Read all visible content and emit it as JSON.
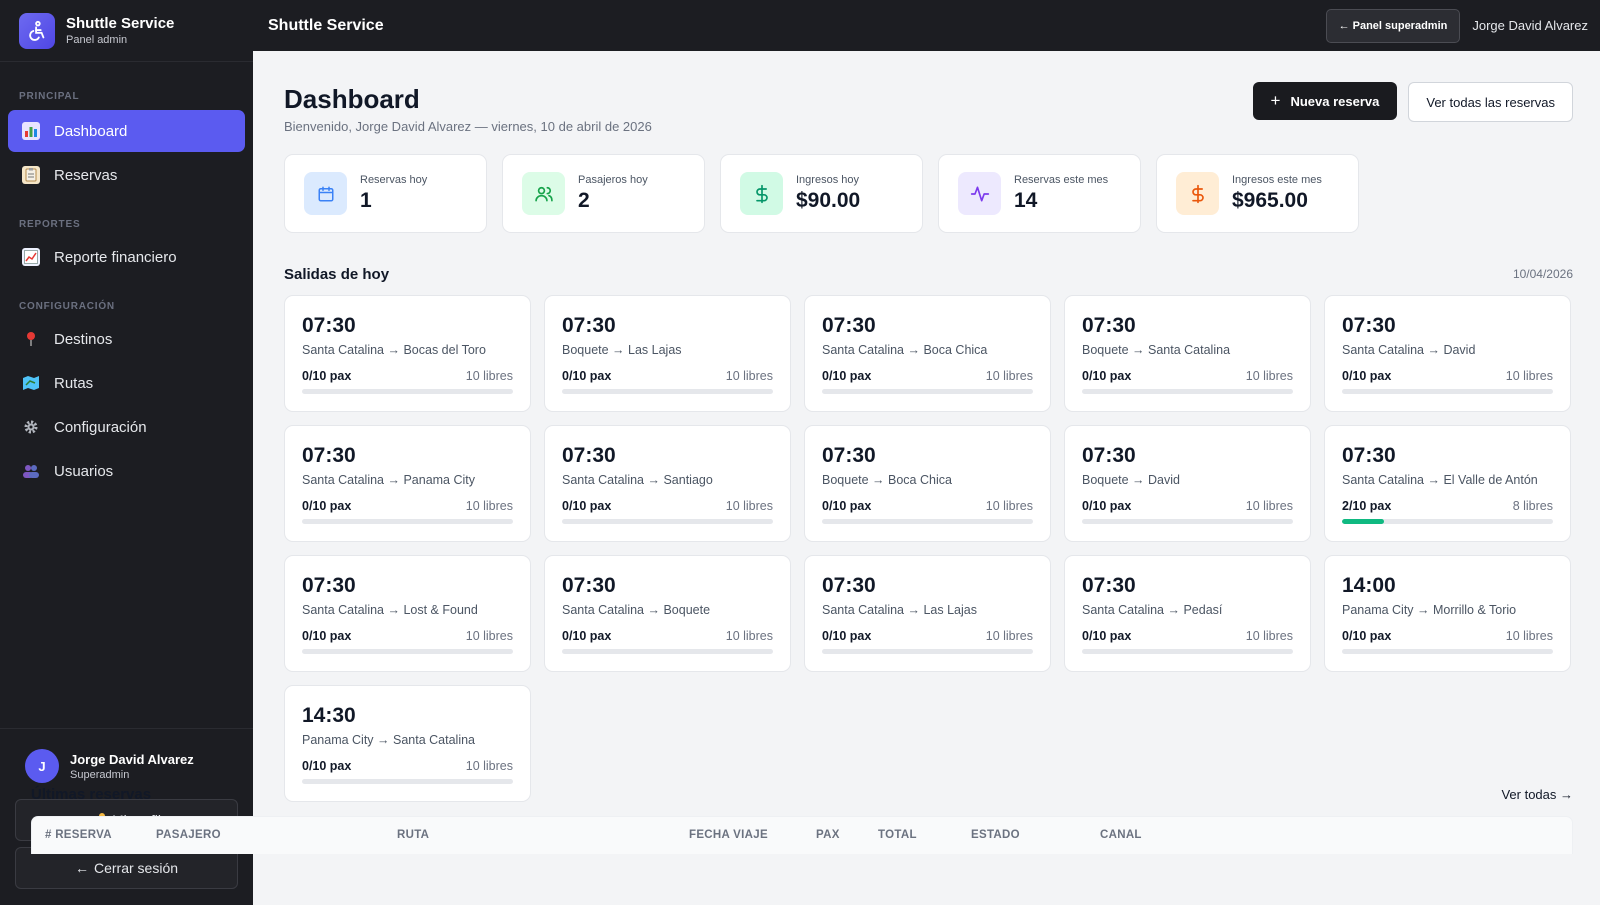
{
  "brand": {
    "title": "Shuttle Service",
    "subtitle": "Panel admin"
  },
  "sidebar": {
    "sections": [
      {
        "label": "PRINCIPAL",
        "items": [
          {
            "label": "Dashboard",
            "icon": "chart-icon",
            "active": true
          },
          {
            "label": "Reservas",
            "icon": "clipboard-icon",
            "active": false
          }
        ]
      },
      {
        "label": "REPORTES",
        "items": [
          {
            "label": "Reporte financiero",
            "icon": "trend-chart-icon",
            "active": false
          }
        ]
      },
      {
        "label": "CONFIGURACIÓN",
        "items": [
          {
            "label": "Destinos",
            "icon": "pin-icon",
            "active": false
          },
          {
            "label": "Rutas",
            "icon": "map-icon",
            "active": false
          },
          {
            "label": "Configuración",
            "icon": "gear-icon",
            "active": false
          },
          {
            "label": "Usuarios",
            "icon": "users-icon",
            "active": false
          }
        ]
      }
    ],
    "user": {
      "initial": "J",
      "name": "Jorge David Alvarez",
      "role": "Superadmin"
    },
    "profile_label": "Mi perfil",
    "logout_label": "Cerrar sesión"
  },
  "topbar": {
    "title": "Shuttle Service",
    "superadmin_label": "Panel superadmin",
    "user_name": "Jorge David Alvarez"
  },
  "header": {
    "title": "Dashboard",
    "subtitle": "Bienvenido, Jorge David Alvarez — viernes, 10 de abril de 2026",
    "new_label": "Nueva reserva",
    "all_label": "Ver todas las reservas"
  },
  "stats": [
    {
      "label": "Reservas hoy",
      "value": "1",
      "icon": "calendar-icon",
      "bg": "#dbeafe",
      "fg": "#3b82f6"
    },
    {
      "label": "Pasajeros hoy",
      "value": "2",
      "icon": "users-icon",
      "bg": "#dcfce7",
      "fg": "#16a34a"
    },
    {
      "label": "Ingresos hoy",
      "value": "$90.00",
      "icon": "dollar-icon",
      "bg": "#d1fae5",
      "fg": "#059669"
    },
    {
      "label": "Reservas este mes",
      "value": "14",
      "icon": "activity-icon",
      "bg": "#ede9fe",
      "fg": "#7c3aed"
    },
    {
      "label": "Ingresos este mes",
      "value": "$965.00",
      "icon": "dollar-icon",
      "bg": "#ffedd5",
      "fg": "#ea580c"
    }
  ],
  "departures_title": "Salidas de hoy",
  "departures_date": "10/04/2026",
  "departures": [
    {
      "time": "07:30",
      "route": "Santa Catalina → Bocas del Toro",
      "pax": "0/10 pax",
      "free": "10 libres",
      "fill": 0
    },
    {
      "time": "07:30",
      "route": "Boquete → Las Lajas",
      "pax": "0/10 pax",
      "free": "10 libres",
      "fill": 0
    },
    {
      "time": "07:30",
      "route": "Santa Catalina → Boca Chica",
      "pax": "0/10 pax",
      "free": "10 libres",
      "fill": 0
    },
    {
      "time": "07:30",
      "route": "Boquete → Santa Catalina",
      "pax": "0/10 pax",
      "free": "10 libres",
      "fill": 0
    },
    {
      "time": "07:30",
      "route": "Santa Catalina → David",
      "pax": "0/10 pax",
      "free": "10 libres",
      "fill": 0
    },
    {
      "time": "07:30",
      "route": "Santa Catalina → Panama City",
      "pax": "0/10 pax",
      "free": "10 libres",
      "fill": 0
    },
    {
      "time": "07:30",
      "route": "Santa Catalina → Santiago",
      "pax": "0/10 pax",
      "free": "10 libres",
      "fill": 0
    },
    {
      "time": "07:30",
      "route": "Boquete → Boca Chica",
      "pax": "0/10 pax",
      "free": "10 libres",
      "fill": 0
    },
    {
      "time": "07:30",
      "route": "Boquete → David",
      "pax": "0/10 pax",
      "free": "10 libres",
      "fill": 0
    },
    {
      "time": "07:30",
      "route": "Santa Catalina → El Valle de Antón",
      "pax": "2/10 pax",
      "free": "8 libres",
      "fill": 0.2
    },
    {
      "time": "07:30",
      "route": "Santa Catalina → Lost & Found",
      "pax": "0/10 pax",
      "free": "10 libres",
      "fill": 0
    },
    {
      "time": "07:30",
      "route": "Santa Catalina → Boquete",
      "pax": "0/10 pax",
      "free": "10 libres",
      "fill": 0
    },
    {
      "time": "07:30",
      "route": "Santa Catalina → Las Lajas",
      "pax": "0/10 pax",
      "free": "10 libres",
      "fill": 0
    },
    {
      "time": "07:30",
      "route": "Santa Catalina → Pedasí",
      "pax": "0/10 pax",
      "free": "10 libres",
      "fill": 0
    },
    {
      "time": "14:00",
      "route": "Panama City → Morrillo & Torio",
      "pax": "0/10 pax",
      "free": "10 libres",
      "fill": 0
    },
    {
      "time": "14:30",
      "route": "Panama City → Santa Catalina",
      "pax": "0/10 pax",
      "free": "10 libres",
      "fill": 0
    }
  ],
  "last": {
    "title": "Últimas reservas",
    "see_all": "Ver todas →",
    "columns": [
      "# RESERVA",
      "PASAJERO",
      "RUTA",
      "FECHA VIAJE",
      "PAX",
      "TOTAL",
      "ESTADO",
      "CANAL"
    ]
  },
  "colors": {
    "accent": "#5b5bf0",
    "sidebar_bg": "#1c1d22",
    "progress": "#10b981"
  }
}
